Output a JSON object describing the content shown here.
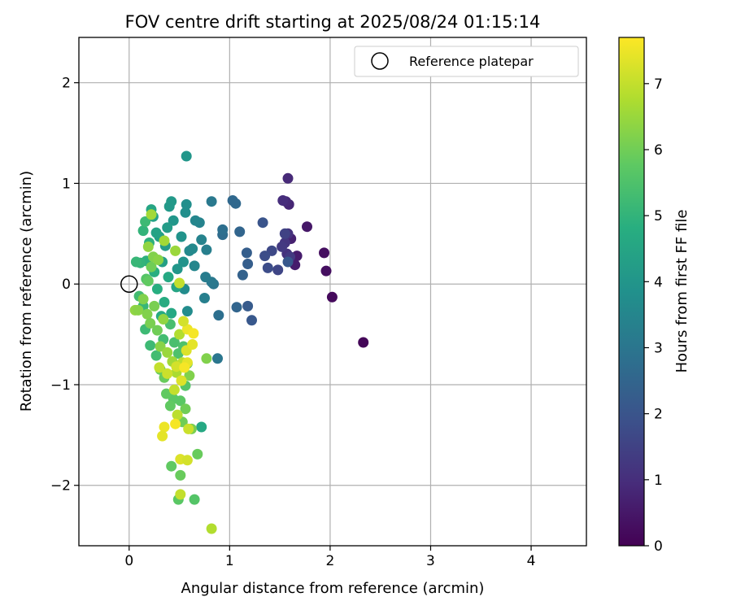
{
  "chart_data": {
    "type": "scatter",
    "title": "FOV centre drift starting at 2025/08/24 01:15:14",
    "xlabel": "Angular distance from reference (arcmin)",
    "ylabel": "Rotation from reference (arcmin)",
    "xlim": [
      -0.5,
      4.55
    ],
    "ylim": [
      -2.6,
      2.45
    ],
    "xticks": [
      0,
      1,
      2,
      3,
      4
    ],
    "yticks": [
      -2,
      -1,
      0,
      1,
      2
    ],
    "grid": true,
    "legend": {
      "position": "top-right",
      "entries": [
        "Reference platepar"
      ]
    },
    "reference_point": {
      "x": 0,
      "y": 0
    },
    "colorbar": {
      "label": "Hours from first FF file",
      "colormap": "viridis",
      "range": [
        0,
        7.7
      ],
      "ticks": [
        0,
        1,
        2,
        3,
        4,
        5,
        6,
        7
      ]
    },
    "points": [
      {
        "x": 2.33,
        "y": -0.58,
        "c": 0.1
      },
      {
        "x": 2.02,
        "y": -0.13,
        "c": 0.2
      },
      {
        "x": 1.96,
        "y": 0.13,
        "c": 0.3
      },
      {
        "x": 1.94,
        "y": 0.31,
        "c": 0.3
      },
      {
        "x": 1.77,
        "y": 0.57,
        "c": 0.5
      },
      {
        "x": 1.67,
        "y": 0.28,
        "c": 0.6
      },
      {
        "x": 1.65,
        "y": 0.19,
        "c": 0.6
      },
      {
        "x": 1.61,
        "y": 0.45,
        "c": 0.7
      },
      {
        "x": 1.59,
        "y": 0.79,
        "c": 0.8
      },
      {
        "x": 1.58,
        "y": 1.05,
        "c": 0.9
      },
      {
        "x": 1.56,
        "y": 0.82,
        "c": 0.9
      },
      {
        "x": 1.53,
        "y": 0.83,
        "c": 1.0
      },
      {
        "x": 1.58,
        "y": 0.5,
        "c": 1.1
      },
      {
        "x": 1.57,
        "y": 0.3,
        "c": 1.1
      },
      {
        "x": 1.55,
        "y": 0.41,
        "c": 1.2
      },
      {
        "x": 1.52,
        "y": 0.37,
        "c": 1.3
      },
      {
        "x": 1.6,
        "y": 0.27,
        "c": 1.3
      },
      {
        "x": 1.55,
        "y": 0.5,
        "c": 1.5
      },
      {
        "x": 1.48,
        "y": 0.14,
        "c": 1.6
      },
      {
        "x": 1.42,
        "y": 0.33,
        "c": 1.7
      },
      {
        "x": 1.38,
        "y": 0.16,
        "c": 1.8
      },
      {
        "x": 1.35,
        "y": 0.28,
        "c": 1.8
      },
      {
        "x": 1.33,
        "y": 0.61,
        "c": 2.0
      },
      {
        "x": 1.58,
        "y": 0.22,
        "c": 2.1
      },
      {
        "x": 1.22,
        "y": -0.36,
        "c": 2.1
      },
      {
        "x": 1.18,
        "y": -0.22,
        "c": 2.2
      },
      {
        "x": 1.18,
        "y": 0.2,
        "c": 2.3
      },
      {
        "x": 1.17,
        "y": 0.31,
        "c": 2.3
      },
      {
        "x": 1.13,
        "y": 0.09,
        "c": 2.4
      },
      {
        "x": 1.1,
        "y": 0.52,
        "c": 2.5
      },
      {
        "x": 1.07,
        "y": -0.23,
        "c": 2.5
      },
      {
        "x": 1.06,
        "y": 0.8,
        "c": 2.6
      },
      {
        "x": 1.03,
        "y": 0.83,
        "c": 2.6
      },
      {
        "x": 0.93,
        "y": 0.49,
        "c": 2.7
      },
      {
        "x": 0.93,
        "y": 0.54,
        "c": 2.8
      },
      {
        "x": 0.89,
        "y": -0.31,
        "c": 2.8
      },
      {
        "x": 0.88,
        "y": -0.74,
        "c": 3.0
      },
      {
        "x": 0.84,
        "y": 0.0,
        "c": 3.0
      },
      {
        "x": 0.82,
        "y": 0.02,
        "c": 3.1
      },
      {
        "x": 0.82,
        "y": 0.82,
        "c": 3.1
      },
      {
        "x": 0.76,
        "y": 0.07,
        "c": 3.2
      },
      {
        "x": 0.77,
        "y": 0.34,
        "c": 3.3
      },
      {
        "x": 0.75,
        "y": -0.14,
        "c": 3.3
      },
      {
        "x": 0.72,
        "y": 0.44,
        "c": 3.4
      },
      {
        "x": 0.7,
        "y": 0.61,
        "c": 3.4
      },
      {
        "x": 0.66,
        "y": 0.63,
        "c": 3.5
      },
      {
        "x": 0.65,
        "y": 0.18,
        "c": 3.5
      },
      {
        "x": 0.63,
        "y": 0.35,
        "c": 3.6
      },
      {
        "x": 0.6,
        "y": 0.33,
        "c": 3.6
      },
      {
        "x": 0.58,
        "y": -0.27,
        "c": 3.7
      },
      {
        "x": 0.55,
        "y": -0.05,
        "c": 3.7
      },
      {
        "x": 0.56,
        "y": 0.71,
        "c": 3.8
      },
      {
        "x": 0.57,
        "y": 0.79,
        "c": 3.8
      },
      {
        "x": 0.54,
        "y": 0.22,
        "c": 3.9
      },
      {
        "x": 0.52,
        "y": 0.47,
        "c": 3.9
      },
      {
        "x": 0.48,
        "y": 0.15,
        "c": 4.0
      },
      {
        "x": 0.44,
        "y": 0.63,
        "c": 4.0
      },
      {
        "x": 0.42,
        "y": 0.82,
        "c": 4.1
      },
      {
        "x": 0.4,
        "y": 0.77,
        "c": 4.1
      },
      {
        "x": 0.38,
        "y": 0.56,
        "c": 4.2
      },
      {
        "x": 0.36,
        "y": 0.38,
        "c": 4.2
      },
      {
        "x": 0.33,
        "y": 0.22,
        "c": 4.3
      },
      {
        "x": 0.3,
        "y": 0.47,
        "c": 4.3
      },
      {
        "x": 0.27,
        "y": 0.51,
        "c": 4.4
      },
      {
        "x": 0.24,
        "y": 0.67,
        "c": 4.4
      },
      {
        "x": 0.22,
        "y": 0.74,
        "c": 4.5
      },
      {
        "x": 0.57,
        "y": 1.27,
        "c": 4.0
      },
      {
        "x": 0.47,
        "y": -0.03,
        "c": 4.5
      },
      {
        "x": 0.42,
        "y": -0.29,
        "c": 4.6
      },
      {
        "x": 0.39,
        "y": 0.07,
        "c": 4.6
      },
      {
        "x": 0.35,
        "y": -0.18,
        "c": 4.7
      },
      {
        "x": 0.32,
        "y": -0.32,
        "c": 4.7
      },
      {
        "x": 0.28,
        "y": -0.05,
        "c": 4.8
      },
      {
        "x": 0.25,
        "y": 0.12,
        "c": 4.8
      },
      {
        "x": 0.2,
        "y": 0.41,
        "c": 4.9
      },
      {
        "x": 0.17,
        "y": 0.23,
        "c": 4.9
      },
      {
        "x": 0.14,
        "y": 0.53,
        "c": 5.0
      },
      {
        "x": 0.11,
        "y": 0.21,
        "c": 5.0
      },
      {
        "x": 0.07,
        "y": 0.22,
        "c": 5.1
      },
      {
        "x": 0.14,
        "y": -0.22,
        "c": 5.1
      },
      {
        "x": 0.16,
        "y": -0.45,
        "c": 5.2
      },
      {
        "x": 0.21,
        "y": -0.61,
        "c": 5.2
      },
      {
        "x": 0.27,
        "y": -0.71,
        "c": 5.3
      },
      {
        "x": 0.34,
        "y": -0.55,
        "c": 5.3
      },
      {
        "x": 0.41,
        "y": -0.4,
        "c": 5.4
      },
      {
        "x": 0.45,
        "y": -0.58,
        "c": 5.4
      },
      {
        "x": 0.49,
        "y": -0.69,
        "c": 5.5
      },
      {
        "x": 0.54,
        "y": -0.62,
        "c": 5.5
      },
      {
        "x": 0.58,
        "y": -0.79,
        "c": 5.6
      },
      {
        "x": 0.72,
        "y": -1.42,
        "c": 4.6
      },
      {
        "x": 0.56,
        "y": -1.01,
        "c": 5.6
      },
      {
        "x": 0.51,
        "y": -1.16,
        "c": 5.7
      },
      {
        "x": 0.44,
        "y": -1.14,
        "c": 5.7
      },
      {
        "x": 0.41,
        "y": -1.21,
        "c": 5.8
      },
      {
        "x": 0.37,
        "y": -1.09,
        "c": 5.8
      },
      {
        "x": 0.35,
        "y": -0.93,
        "c": 5.9
      },
      {
        "x": 0.31,
        "y": -0.85,
        "c": 5.9
      },
      {
        "x": 0.56,
        "y": -1.24,
        "c": 6.0
      },
      {
        "x": 0.53,
        "y": -1.37,
        "c": 6.0
      },
      {
        "x": 0.62,
        "y": -1.44,
        "c": 6.1
      },
      {
        "x": 0.68,
        "y": -1.69,
        "c": 5.9
      },
      {
        "x": 0.51,
        "y": -1.9,
        "c": 5.9
      },
      {
        "x": 0.42,
        "y": -1.81,
        "c": 5.8
      },
      {
        "x": 0.49,
        "y": -2.14,
        "c": 5.7
      },
      {
        "x": 0.65,
        "y": -2.14,
        "c": 5.6
      },
      {
        "x": 0.77,
        "y": -0.74,
        "c": 6.2
      },
      {
        "x": 0.6,
        "y": -0.91,
        "c": 6.2
      },
      {
        "x": 0.16,
        "y": 0.62,
        "c": 5.2
      },
      {
        "x": 0.1,
        "y": -0.12,
        "c": 5.3
      },
      {
        "x": 0.17,
        "y": 0.05,
        "c": 5.6
      },
      {
        "x": 0.19,
        "y": 0.03,
        "c": 5.8
      },
      {
        "x": 0.22,
        "y": 0.17,
        "c": 6.0
      },
      {
        "x": 0.24,
        "y": 0.27,
        "c": 6.2
      },
      {
        "x": 0.29,
        "y": 0.24,
        "c": 6.3
      },
      {
        "x": 0.19,
        "y": 0.37,
        "c": 6.4
      },
      {
        "x": 0.22,
        "y": 0.69,
        "c": 6.6
      },
      {
        "x": 0.35,
        "y": 0.43,
        "c": 6.6
      },
      {
        "x": 0.46,
        "y": 0.33,
        "c": 6.5
      },
      {
        "x": 0.06,
        "y": -0.26,
        "c": 6.4
      },
      {
        "x": 0.09,
        "y": -0.26,
        "c": 6.3
      },
      {
        "x": 0.14,
        "y": -0.15,
        "c": 6.2
      },
      {
        "x": 0.18,
        "y": -0.3,
        "c": 6.2
      },
      {
        "x": 0.21,
        "y": -0.39,
        "c": 6.1
      },
      {
        "x": 0.25,
        "y": -0.22,
        "c": 6.1
      },
      {
        "x": 0.28,
        "y": -0.46,
        "c": 6.0
      },
      {
        "x": 0.31,
        "y": -0.62,
        "c": 6.3
      },
      {
        "x": 0.34,
        "y": -0.35,
        "c": 6.4
      },
      {
        "x": 0.38,
        "y": -0.68,
        "c": 6.5
      },
      {
        "x": 0.43,
        "y": -0.77,
        "c": 6.6
      },
      {
        "x": 0.47,
        "y": -0.88,
        "c": 6.7
      },
      {
        "x": 0.5,
        "y": -0.5,
        "c": 6.8
      },
      {
        "x": 0.53,
        "y": -0.78,
        "c": 6.9
      },
      {
        "x": 0.3,
        "y": -0.83,
        "c": 7.0
      },
      {
        "x": 0.38,
        "y": -0.89,
        "c": 7.1
      },
      {
        "x": 0.47,
        "y": -0.82,
        "c": 7.2
      },
      {
        "x": 0.52,
        "y": -0.96,
        "c": 7.3
      },
      {
        "x": 0.58,
        "y": -0.78,
        "c": 7.4
      },
      {
        "x": 0.58,
        "y": -0.45,
        "c": 7.5
      },
      {
        "x": 0.45,
        "y": -1.05,
        "c": 7.0
      },
      {
        "x": 0.48,
        "y": -1.3,
        "c": 6.9
      },
      {
        "x": 0.46,
        "y": -1.39,
        "c": 7.6
      },
      {
        "x": 0.35,
        "y": -1.42,
        "c": 7.5
      },
      {
        "x": 0.33,
        "y": -1.51,
        "c": 7.4
      },
      {
        "x": 0.59,
        "y": -1.44,
        "c": 7.1
      },
      {
        "x": 0.51,
        "y": -1.74,
        "c": 7.3
      },
      {
        "x": 0.58,
        "y": -1.75,
        "c": 7.2
      },
      {
        "x": 0.51,
        "y": -2.09,
        "c": 7.0
      },
      {
        "x": 0.82,
        "y": -2.43,
        "c": 6.8
      },
      {
        "x": 0.5,
        "y": 0.01,
        "c": 7.0
      },
      {
        "x": 0.54,
        "y": -0.37,
        "c": 7.2
      },
      {
        "x": 0.57,
        "y": -0.66,
        "c": 7.3
      },
      {
        "x": 0.63,
        "y": -0.6,
        "c": 7.4
      },
      {
        "x": 0.64,
        "y": -0.49,
        "c": 7.6
      },
      {
        "x": 0.55,
        "y": -0.83,
        "c": 7.6
      }
    ]
  }
}
